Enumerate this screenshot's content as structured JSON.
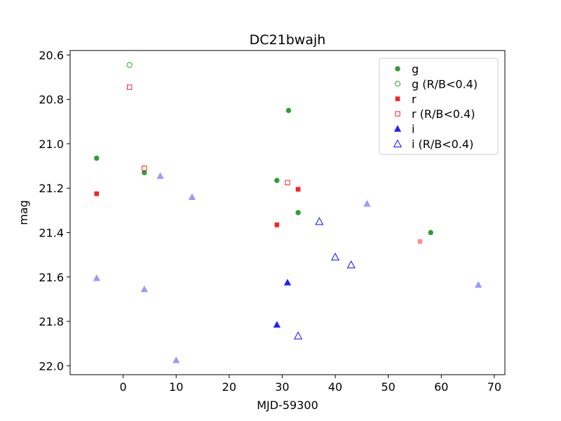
{
  "chart_data": {
    "type": "scatter",
    "title": "DC21bwajh",
    "xlabel": "MJD-59300",
    "ylabel": "mag",
    "xlim": [
      -10,
      72
    ],
    "ylim": [
      22.04,
      20.58
    ],
    "y_inverted": true,
    "x_ticks": [
      0,
      10,
      20,
      30,
      40,
      50,
      60,
      70
    ],
    "y_ticks": [
      20.6,
      20.8,
      21.0,
      21.2,
      21.4,
      21.6,
      21.8,
      22.0
    ],
    "x_tick_labels": [
      "0",
      "10",
      "20",
      "30",
      "40",
      "50",
      "60",
      "70"
    ],
    "y_tick_labels": [
      "20.6",
      "20.8",
      "21.0",
      "21.2",
      "21.4",
      "21.6",
      "21.8",
      "22.0"
    ],
    "grid": false,
    "legend_position": "upper-right",
    "legend_entries": [
      {
        "label": "g",
        "series": "g"
      },
      {
        "label": "g (R/B<0.4)",
        "series": "g_low"
      },
      {
        "label": "r",
        "series": "r"
      },
      {
        "label": "r (R/B<0.4)",
        "series": "r_low"
      },
      {
        "label": "i",
        "series": "i"
      },
      {
        "label": "i (R/B<0.4)",
        "series": "i_low"
      }
    ],
    "series": [
      {
        "name": "g",
        "marker": "circle",
        "filled": true,
        "color": "#2ca02c",
        "points": [
          {
            "x": -5,
            "y": 21.065,
            "alpha": 1
          },
          {
            "x": 4,
            "y": 21.13,
            "alpha": 1
          },
          {
            "x": 29,
            "y": 21.165,
            "alpha": 1
          },
          {
            "x": 31.2,
            "y": 20.85,
            "alpha": 1
          },
          {
            "x": 33,
            "y": 21.31,
            "alpha": 1
          },
          {
            "x": 58,
            "y": 21.4,
            "alpha": 1
          }
        ]
      },
      {
        "name": "g (R/B<0.4)",
        "marker": "circle",
        "filled": false,
        "color": "#2ca02c",
        "points": [
          {
            "x": 1.2,
            "y": 20.645,
            "alpha": 1
          }
        ]
      },
      {
        "name": "r",
        "marker": "square",
        "filled": true,
        "color": "#ff2020",
        "points": [
          {
            "x": -5,
            "y": 21.225,
            "alpha": 1
          },
          {
            "x": 29,
            "y": 21.365,
            "alpha": 1
          },
          {
            "x": 33,
            "y": 21.205,
            "alpha": 1
          },
          {
            "x": 56,
            "y": 21.44,
            "alpha": 0.5
          }
        ]
      },
      {
        "name": "r (R/B<0.4)",
        "marker": "square",
        "filled": false,
        "color": "#ff2020",
        "points": [
          {
            "x": 1.2,
            "y": 20.745,
            "alpha": 1
          },
          {
            "x": 4,
            "y": 21.11,
            "alpha": 1
          },
          {
            "x": 31,
            "y": 21.175,
            "alpha": 1
          }
        ]
      },
      {
        "name": "i",
        "marker": "triangle",
        "filled": true,
        "color": "#2020ff",
        "points": [
          {
            "x": -5,
            "y": 21.605,
            "alpha": 0.45
          },
          {
            "x": 4,
            "y": 21.655,
            "alpha": 0.45
          },
          {
            "x": 7,
            "y": 21.145,
            "alpha": 0.45
          },
          {
            "x": 10,
            "y": 21.975,
            "alpha": 0.45
          },
          {
            "x": 13,
            "y": 21.24,
            "alpha": 0.45
          },
          {
            "x": 29,
            "y": 21.815,
            "alpha": 1
          },
          {
            "x": 31,
            "y": 21.625,
            "alpha": 1
          },
          {
            "x": 46,
            "y": 21.27,
            "alpha": 0.45
          },
          {
            "x": 67,
            "y": 21.635,
            "alpha": 0.45
          }
        ]
      },
      {
        "name": "i (R/B<0.4)",
        "marker": "triangle",
        "filled": false,
        "color": "#2020ff",
        "points": [
          {
            "x": 33,
            "y": 21.865,
            "alpha": 1
          },
          {
            "x": 37,
            "y": 21.35,
            "alpha": 1
          },
          {
            "x": 40,
            "y": 21.51,
            "alpha": 1
          },
          {
            "x": 43,
            "y": 21.545,
            "alpha": 1
          }
        ]
      }
    ]
  }
}
